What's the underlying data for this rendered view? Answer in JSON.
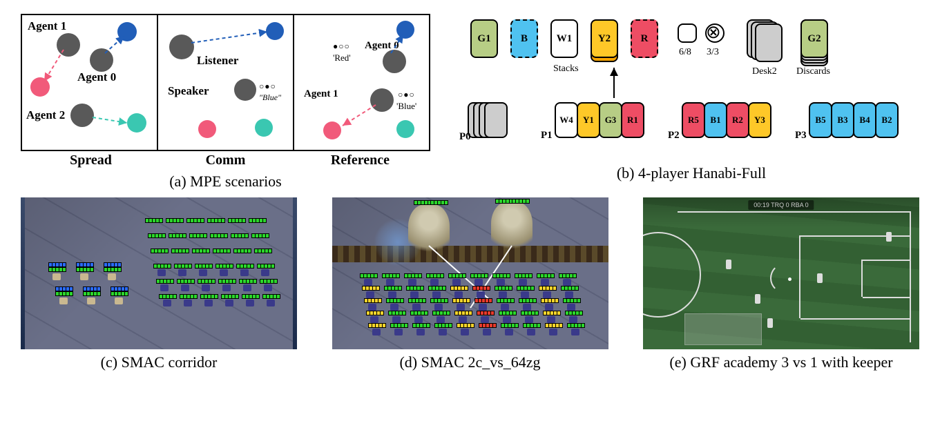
{
  "colors": {
    "gray": "#595959",
    "blue": "#215eb8",
    "pink": "#f15a7a",
    "teal": "#3ac7b1",
    "card_green": "#b7cd85",
    "card_blue": "#4fc2f0",
    "card_white": "#ffffff",
    "card_yellow": "#fec828",
    "card_red": "#ee4d64",
    "card_gray": "#cdcdcd",
    "card_orange": "#f5a300",
    "bar_green": "#2bd72b",
    "bar_blue": "#2b6bff",
    "bar_yellow": "#f6d42b",
    "bar_red": "#e83a2b",
    "zerg": "#3a3a8a"
  },
  "captions": {
    "a": "(a)  MPE scenarios",
    "b": "(b)  4-player Hanabi-Full",
    "c": "(c)  SMAC corridor",
    "d": "(d)  SMAC 2c_vs_64zg",
    "e": "(e)  GRF academy 3 vs 1 with keeper"
  },
  "mpe": {
    "sub_labels": [
      "Spread",
      "Comm",
      "Reference"
    ],
    "spread": {
      "agents": [
        "Agent 1",
        "Agent 0",
        "Agent 2"
      ]
    },
    "comm": {
      "listener": "Listener",
      "speaker": "Speaker",
      "say": "\"Blue\""
    },
    "reference": {
      "a0": "Agent 0",
      "a1": "Agent 1",
      "r": "'Red'",
      "b": "'Blue'"
    }
  },
  "hanabi": {
    "stacks": [
      {
        "label": "G1",
        "fill": "card_green",
        "dashed": false
      },
      {
        "label": "B",
        "fill": "card_blue",
        "dashed": true
      },
      {
        "label": "W1",
        "fill": "card_white",
        "dashed": false
      },
      {
        "label": "Y2",
        "fill": "card_yellow",
        "dashed": false,
        "under": "card_orange"
      },
      {
        "label": "R",
        "fill": "card_red",
        "dashed": true
      }
    ],
    "stacks_label": "Stacks",
    "tokens": {
      "hint": "6/8",
      "life": "3/3"
    },
    "desk_label": "Desk2",
    "discards_label": "Discards",
    "discards": [
      {
        "fill": "card_gray"
      },
      {
        "fill": "card_gray"
      },
      {
        "fill": "card_gray"
      },
      {
        "fill": "card_yellow"
      }
    ],
    "desk": [
      {
        "fill": "card_gray"
      },
      {
        "fill": "card_gray"
      },
      {
        "fill": "card_gray"
      }
    ],
    "p_labels": [
      "P0",
      "P1",
      "P2",
      "P3"
    ],
    "hands": {
      "p0": [
        {
          "fill": "card_gray"
        },
        {
          "fill": "card_gray"
        },
        {
          "fill": "card_gray"
        },
        {
          "fill": "card_gray"
        }
      ],
      "p1": [
        {
          "label": "W4",
          "fill": "card_white"
        },
        {
          "label": "Y1",
          "fill": "card_yellow"
        },
        {
          "label": "G3",
          "fill": "card_green"
        },
        {
          "label": "R1",
          "fill": "card_red"
        }
      ],
      "p2": [
        {
          "label": "R5",
          "fill": "card_red"
        },
        {
          "label": "B1",
          "fill": "card_blue"
        },
        {
          "label": "R2",
          "fill": "card_red"
        },
        {
          "label": "Y3",
          "fill": "card_yellow"
        }
      ],
      "p3": [
        {
          "label": "B5",
          "fill": "card_blue"
        },
        {
          "label": "B3",
          "fill": "card_blue"
        },
        {
          "label": "B4",
          "fill": "card_blue"
        },
        {
          "label": "B2",
          "fill": "card_blue"
        }
      ]
    }
  },
  "grf": {
    "hud": "00:19    TRQ  0     RBA  0"
  }
}
